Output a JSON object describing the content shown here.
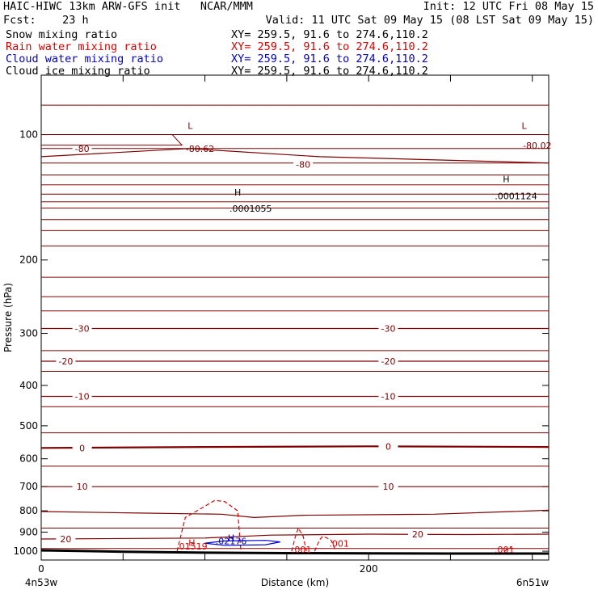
{
  "header": {
    "title": "HAIC-HIWC 13km ARW-GFS init   NCAR/MMM",
    "init": "Init: 12 UTC Fri 08 May 15",
    "fcst": "Fcst:    23 h",
    "valid": "Valid: 11 UTC Sat 09 May 15 (08 LST Sat 09 May 15)",
    "fields": [
      {
        "name": "Snow mixing ratio",
        "xy": "XY= 259.5, 91.6 to 274.6,110.2",
        "color": "#000000"
      },
      {
        "name": "Rain water mixing ratio",
        "xy": "XY= 259.5, 91.6 to 274.6,110.2",
        "color": "#e00000"
      },
      {
        "name": "Cloud water mixing ratio",
        "xy": "XY= 259.5, 91.6 to 274.6,110.2",
        "color": "#0000d0"
      },
      {
        "name": "Cloud ice mixing ratio",
        "xy": "XY= 259.5, 91.6 to 274.6,110.2",
        "color": "#000000"
      }
    ]
  },
  "chart_data": {
    "type": "line",
    "xlabel": "Distance (km)",
    "ylabel": "Pressure (hPa)",
    "x_range_km": [
      0,
      310
    ],
    "p_range_hpa": [
      1050,
      72
    ],
    "y_log_scale": true,
    "x_ticks": [
      0,
      50,
      100,
      150,
      200,
      250,
      300
    ],
    "x_tick_labels": [
      "0",
      "",
      "",
      "",
      "200",
      "",
      ""
    ],
    "y_ticks": [
      100,
      200,
      300,
      400,
      500,
      600,
      700,
      800,
      900,
      1000
    ],
    "y_tick_labels": [
      "100",
      "200",
      "300",
      "400",
      "500",
      "600",
      "700",
      "800",
      "900",
      "1000"
    ],
    "corner_labels": {
      "left": "4n53w",
      "right": "6n51w"
    },
    "colors": {
      "temperature": "#800000",
      "rain": "#e00000",
      "cloud": "#0000d0",
      "ground": "#000000"
    },
    "temperature_contours_c": [
      {
        "value": -80,
        "label": "-80"
      },
      {
        "value": -30,
        "label": "-30"
      },
      {
        "value": -20,
        "label": "-20"
      },
      {
        "value": -10,
        "label": "-10"
      },
      {
        "value": 0,
        "label": "0"
      },
      {
        "value": 10,
        "label": "10"
      },
      {
        "value": 20,
        "label": "20"
      }
    ],
    "extrema": [
      {
        "kind": "L",
        "value": "-80.62",
        "color": "#800000"
      },
      {
        "kind": "L",
        "value": "-80.02",
        "color": "#800000"
      },
      {
        "kind": "H",
        "value": ".0001055",
        "color": "#000000"
      },
      {
        "kind": "H",
        "value": ".0001124",
        "color": "#000000"
      },
      {
        "kind": "H",
        "value": ".01519",
        "color": "#e00000"
      },
      {
        "kind": "H",
        "value": ".02176",
        "color": "#0000d0"
      }
    ],
    "rain_contour_labels": [
      ".001",
      ".001",
      ".001"
    ],
    "ground_surface_hpa": [
      {
        "x": 0,
        "p": 995
      },
      {
        "x": 50,
        "p": 1003
      },
      {
        "x": 100,
        "p": 1008
      },
      {
        "x": 150,
        "p": 1011
      },
      {
        "x": 200,
        "p": 1012
      },
      {
        "x": 250,
        "p": 1013
      },
      {
        "x": 310,
        "p": 1013
      }
    ]
  }
}
